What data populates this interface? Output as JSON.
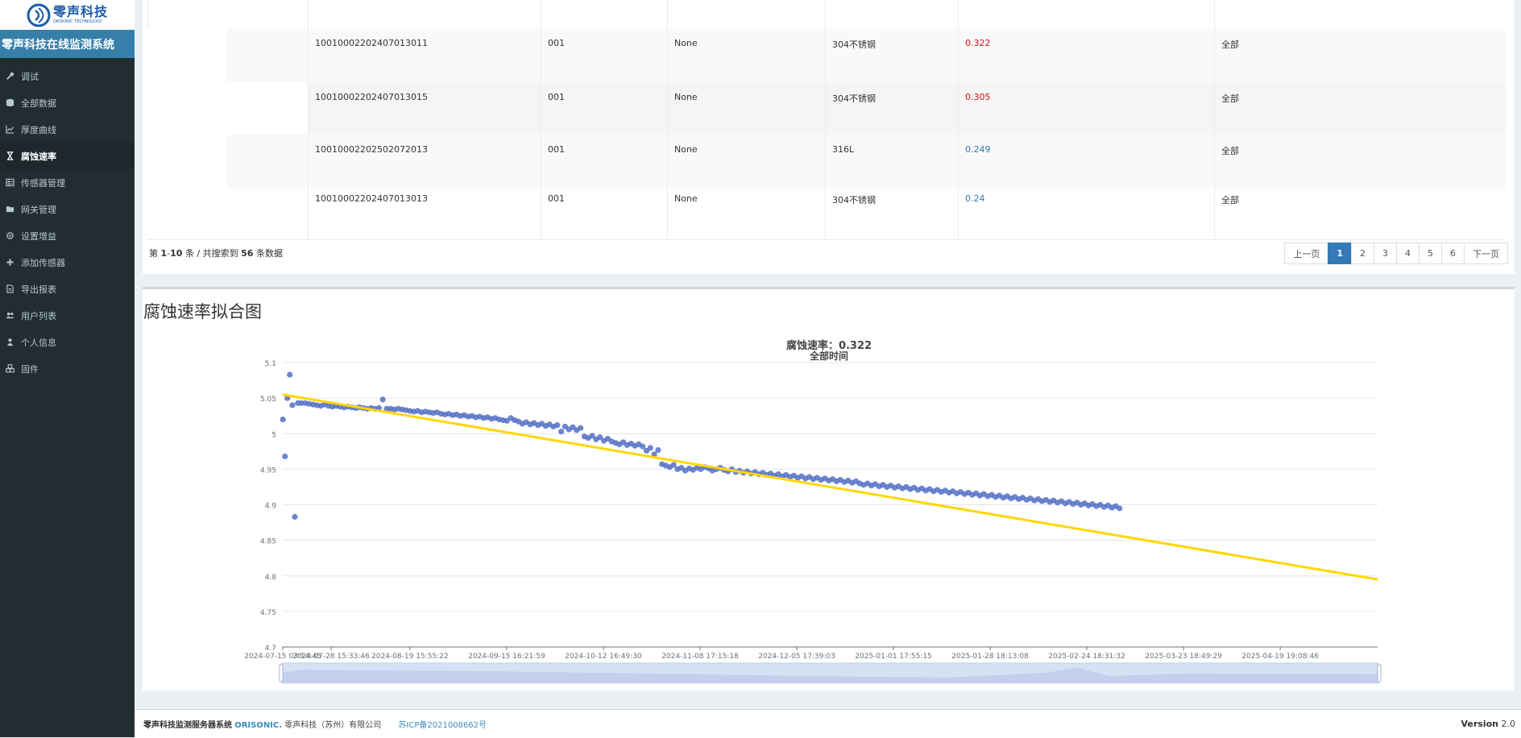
{
  "brand": {
    "logo_cn": "零声科技",
    "logo_en": "ORISONIC TECHNOLOGY",
    "system_title": "零声科技在线监测系统"
  },
  "sidebar": {
    "items": [
      {
        "label": "调试",
        "icon": "wrench-icon",
        "active": false
      },
      {
        "label": "全部数据",
        "icon": "database-icon",
        "active": false
      },
      {
        "label": "厚度曲线",
        "icon": "line-chart-icon",
        "active": false
      },
      {
        "label": "腐蚀速率",
        "icon": "hourglass-icon",
        "active": true
      },
      {
        "label": "传感器管理",
        "icon": "table-icon",
        "active": false
      },
      {
        "label": "网关管理",
        "icon": "folder-icon",
        "active": false
      },
      {
        "label": "设置增益",
        "icon": "gear-icon",
        "active": false
      },
      {
        "label": "添加传感器",
        "icon": "plus-icon",
        "active": false
      },
      {
        "label": "导出报表",
        "icon": "file-icon",
        "active": false
      },
      {
        "label": "用户列表",
        "icon": "users-icon",
        "active": false
      },
      {
        "label": "个人信息",
        "icon": "user-icon",
        "active": false
      },
      {
        "label": "固件",
        "icon": "cubes-icon",
        "active": false
      }
    ]
  },
  "table": {
    "rows": [
      {
        "sensor_id": "10010002202407013011",
        "code": "001",
        "name": "None",
        "material": "304不锈钢",
        "rate": "0.322",
        "rate_color": "#dd1111",
        "range": "全部"
      },
      {
        "sensor_id": "10010002202407013015",
        "code": "001",
        "name": "None",
        "material": "304不锈钢",
        "rate": "0.305",
        "rate_color": "#dd1111",
        "range": "全部"
      },
      {
        "sensor_id": "10010002202502072013",
        "code": "001",
        "name": "None",
        "material": "316L",
        "rate": "0.249",
        "rate_color": "#337ab7",
        "range": "全部"
      },
      {
        "sensor_id": "10010002202407013013",
        "code": "001",
        "name": "None",
        "material": "304不锈钢",
        "rate": "0.24",
        "rate_color": "#337ab7",
        "range": "全部"
      }
    ]
  },
  "pager": {
    "prefix": "第",
    "start": "1",
    "sep": "-",
    "end": "10",
    "mid": "条 / 共搜索到",
    "total": "56",
    "suffix": "条数据",
    "prev": "上一页",
    "next": "下一页",
    "pages": [
      "1",
      "2",
      "3",
      "4",
      "5",
      "6"
    ],
    "current": "1"
  },
  "chart_section": {
    "heading": "腐蚀速率拟合图"
  },
  "chart_data": {
    "type": "scatter",
    "title": "腐蚀速率：0.322",
    "subtitle": "全部时间",
    "ylim": [
      4.7,
      5.1
    ],
    "yticks": [
      4.7,
      4.75,
      4.8,
      4.85,
      4.9,
      4.95,
      5,
      5.05,
      5.1
    ],
    "ytick_labels": [
      "4.7",
      "4.75",
      "4.8",
      "4.85",
      "4.9",
      "4.95",
      "5",
      "5.05",
      "5.1"
    ],
    "xlim": [
      "2024-07-15 03:14:45",
      "2025-05-17 00:00:00"
    ],
    "xticks": [
      "2024-07-15 03:14:45",
      "2024-07-28 15:33:46",
      "2024-08-19 15:55:22",
      "2024-09-15 16:21:59",
      "2024-10-12 16:49:30",
      "2024-11-08 17:15:18",
      "2024-12-05 17:39:03",
      "2025-01-01 17:55:15",
      "2025-01-28 18:13:08",
      "2025-02-24 18:31:32",
      "2025-03-23 18:49:29",
      "2025-04-19 19:08:46"
    ],
    "grid": true,
    "scatter_color": "#5470c6",
    "fit_color": "#ffd700",
    "fit_line": {
      "x": [
        "2024-07-15 03:14:45",
        "2025-05-17 00:00:00"
      ],
      "y": [
        5.055,
        4.795
      ]
    },
    "points": [
      [
        "2024-07-15 04:00:00",
        5.02
      ],
      [
        "2024-07-15 18:00:00",
        4.968
      ],
      [
        "2024-07-16 10:00:00",
        5.05
      ],
      [
        "2024-07-17 02:00:00",
        5.083
      ],
      [
        "2024-07-17 20:00:00",
        5.04
      ],
      [
        "2024-07-18 12:00:00",
        4.883
      ],
      [
        "2024-07-19 09:00:00",
        5.043
      ],
      [
        "2024-07-20 08:00:00",
        5.043
      ],
      [
        "2024-07-21 10:00:00",
        5.043
      ],
      [
        "2024-07-22 12:00:00",
        5.042
      ],
      [
        "2024-07-23 14:00:00",
        5.041
      ],
      [
        "2024-07-24 16:00:00",
        5.04
      ],
      [
        "2024-07-25 18:00:00",
        5.039
      ],
      [
        "2024-07-26 20:00:00",
        5.041
      ],
      [
        "2024-07-27 22:00:00",
        5.039
      ],
      [
        "2024-07-29 00:00:00",
        5.038
      ],
      [
        "2024-07-30 02:00:00",
        5.039
      ],
      [
        "2024-07-31 04:00:00",
        5.038
      ],
      [
        "2024-08-01 06:00:00",
        5.037
      ],
      [
        "2024-08-02 08:00:00",
        5.038
      ],
      [
        "2024-08-03 10:00:00",
        5.037
      ],
      [
        "2024-08-04 12:00:00",
        5.036
      ],
      [
        "2024-08-05 14:00:00",
        5.037
      ],
      [
        "2024-08-06 16:00:00",
        5.036
      ],
      [
        "2024-08-07 18:00:00",
        5.035
      ],
      [
        "2024-08-08 20:00:00",
        5.036
      ],
      [
        "2024-08-09 22:00:00",
        5.035
      ],
      [
        "2024-08-11 00:00:00",
        5.036
      ],
      [
        "2024-08-12 02:00:00",
        5.048
      ],
      [
        "2024-08-13 04:00:00",
        5.035
      ],
      [
        "2024-08-14 06:00:00",
        5.035
      ],
      [
        "2024-08-15 08:00:00",
        5.034
      ],
      [
        "2024-08-16 10:00:00",
        5.035
      ],
      [
        "2024-08-17 12:00:00",
        5.034
      ],
      [
        "2024-08-18 14:00:00",
        5.033
      ],
      [
        "2024-08-19 16:00:00",
        5.032
      ],
      [
        "2024-08-20 18:00:00",
        5.031
      ],
      [
        "2024-08-21 20:00:00",
        5.032
      ],
      [
        "2024-08-22 22:00:00",
        5.03
      ],
      [
        "2024-08-24 00:00:00",
        5.031
      ],
      [
        "2024-08-25 02:00:00",
        5.03
      ],
      [
        "2024-08-26 04:00:00",
        5.029
      ],
      [
        "2024-08-27 06:00:00",
        5.03
      ],
      [
        "2024-08-28 08:00:00",
        5.028
      ],
      [
        "2024-08-29 10:00:00",
        5.027
      ],
      [
        "2024-08-30 12:00:00",
        5.028
      ],
      [
        "2024-08-31 14:00:00",
        5.026
      ],
      [
        "2024-09-01 16:00:00",
        5.027
      ],
      [
        "2024-09-02 18:00:00",
        5.025
      ],
      [
        "2024-09-03 20:00:00",
        5.026
      ],
      [
        "2024-09-04 22:00:00",
        5.024
      ],
      [
        "2024-09-06 00:00:00",
        5.025
      ],
      [
        "2024-09-07 02:00:00",
        5.023
      ],
      [
        "2024-09-08 04:00:00",
        5.024
      ],
      [
        "2024-09-09 06:00:00",
        5.022
      ],
      [
        "2024-09-10 08:00:00",
        5.023
      ],
      [
        "2024-09-11 10:00:00",
        5.021
      ],
      [
        "2024-09-12 12:00:00",
        5.022
      ],
      [
        "2024-09-13 14:00:00",
        5.02
      ],
      [
        "2024-09-14 16:00:00",
        5.019
      ],
      [
        "2024-09-15 18:00:00",
        5.018
      ],
      [
        "2024-09-16 20:00:00",
        5.022
      ],
      [
        "2024-09-17 22:00:00",
        5.019
      ],
      [
        "2024-09-19 00:00:00",
        5.017
      ],
      [
        "2024-09-20 02:00:00",
        5.014
      ],
      [
        "2024-09-21 04:00:00",
        5.016
      ],
      [
        "2024-09-22 06:00:00",
        5.013
      ],
      [
        "2024-09-23 08:00:00",
        5.015
      ],
      [
        "2024-09-24 10:00:00",
        5.012
      ],
      [
        "2024-09-25 12:00:00",
        5.014
      ],
      [
        "2024-09-26 14:00:00",
        5.011
      ],
      [
        "2024-09-27 16:00:00",
        5.013
      ],
      [
        "2024-09-28 18:00:00",
        5.01
      ],
      [
        "2024-09-29 20:00:00",
        5.012
      ],
      [
        "2024-09-30 22:00:00",
        5.003
      ],
      [
        "2024-10-02 00:00:00",
        5.01
      ],
      [
        "2024-10-03 02:00:00",
        5.006
      ],
      [
        "2024-10-04 04:00:00",
        5.009
      ],
      [
        "2024-10-05 06:00:00",
        5.005
      ],
      [
        "2024-10-06 08:00:00",
        5.008
      ],
      [
        "2024-10-07 10:00:00",
        4.996
      ],
      [
        "2024-10-08 12:00:00",
        4.994
      ],
      [
        "2024-10-09 14:00:00",
        4.997
      ],
      [
        "2024-10-10 16:00:00",
        4.992
      ],
      [
        "2024-10-11 18:00:00",
        4.995
      ],
      [
        "2024-10-12 20:00:00",
        4.99
      ],
      [
        "2024-10-13 22:00:00",
        4.993
      ],
      [
        "2024-10-15 00:00:00",
        4.989
      ],
      [
        "2024-10-16 02:00:00",
        4.987
      ],
      [
        "2024-10-17 04:00:00",
        4.985
      ],
      [
        "2024-10-18 06:00:00",
        4.988
      ],
      [
        "2024-10-19 08:00:00",
        4.984
      ],
      [
        "2024-10-20 10:00:00",
        4.986
      ],
      [
        "2024-10-21 12:00:00",
        4.983
      ],
      [
        "2024-10-22 14:00:00",
        4.985
      ],
      [
        "2024-10-23 16:00:00",
        4.982
      ],
      [
        "2024-10-24 18:00:00",
        4.976
      ],
      [
        "2024-10-25 20:00:00",
        4.98
      ],
      [
        "2024-10-26 22:00:00",
        4.971
      ],
      [
        "2024-10-28 00:00:00",
        4.977
      ],
      [
        "2024-10-29 02:00:00",
        4.957
      ],
      [
        "2024-10-30 04:00:00",
        4.955
      ],
      [
        "2024-10-31 06:00:00",
        4.953
      ],
      [
        "2024-11-01 08:00:00",
        4.956
      ],
      [
        "2024-11-02 10:00:00",
        4.95
      ],
      [
        "2024-11-03 12:00:00",
        4.952
      ],
      [
        "2024-11-04 14:00:00",
        4.948
      ],
      [
        "2024-11-05 16:00:00",
        4.951
      ],
      [
        "2024-11-06 18:00:00",
        4.949
      ],
      [
        "2024-11-07 20:00:00",
        4.952
      ],
      [
        "2024-11-08 22:00:00",
        4.95
      ],
      [
        "2024-11-10 00:00:00",
        4.953
      ],
      [
        "2024-11-11 02:00:00",
        4.951
      ],
      [
        "2024-11-12 04:00:00",
        4.948
      ],
      [
        "2024-11-13 06:00:00",
        4.95
      ],
      [
        "2024-11-14 08:00:00",
        4.952
      ],
      [
        "2024-11-15 10:00:00",
        4.949
      ],
      [
        "2024-11-16 12:00:00",
        4.947
      ],
      [
        "2024-11-17 14:00:00",
        4.95
      ],
      [
        "2024-11-18 16:00:00",
        4.946
      ],
      [
        "2024-11-19 18:00:00",
        4.948
      ],
      [
        "2024-11-20 20:00:00",
        4.945
      ],
      [
        "2024-11-21 22:00:00",
        4.947
      ],
      [
        "2024-11-23 00:00:00",
        4.944
      ],
      [
        "2024-11-24 02:00:00",
        4.946
      ],
      [
        "2024-11-25 04:00:00",
        4.943
      ],
      [
        "2024-11-26 06:00:00",
        4.945
      ],
      [
        "2024-11-27 08:00:00",
        4.942
      ],
      [
        "2024-11-28 10:00:00",
        4.944
      ],
      [
        "2024-11-29 12:00:00",
        4.941
      ],
      [
        "2024-11-30 14:00:00",
        4.943
      ],
      [
        "2024-12-01 16:00:00",
        4.94
      ],
      [
        "2024-12-02 18:00:00",
        4.942
      ],
      [
        "2024-12-03 20:00:00",
        4.939
      ],
      [
        "2024-12-04 22:00:00",
        4.941
      ],
      [
        "2024-12-06 00:00:00",
        4.938
      ],
      [
        "2024-12-07 02:00:00",
        4.94
      ],
      [
        "2024-12-08 04:00:00",
        4.937
      ],
      [
        "2024-12-09 06:00:00",
        4.939
      ],
      [
        "2024-12-10 08:00:00",
        4.936
      ],
      [
        "2024-12-11 10:00:00",
        4.938
      ],
      [
        "2024-12-12 12:00:00",
        4.935
      ],
      [
        "2024-12-13 14:00:00",
        4.937
      ],
      [
        "2024-12-14 16:00:00",
        4.934
      ],
      [
        "2024-12-15 18:00:00",
        4.936
      ],
      [
        "2024-12-16 20:00:00",
        4.933
      ],
      [
        "2024-12-17 22:00:00",
        4.935
      ],
      [
        "2024-12-19 00:00:00",
        4.932
      ],
      [
        "2024-12-20 02:00:00",
        4.934
      ],
      [
        "2024-12-21 04:00:00",
        4.931
      ],
      [
        "2024-12-22 06:00:00",
        4.933
      ],
      [
        "2024-12-23 08:00:00",
        4.93
      ],
      [
        "2024-12-24 10:00:00",
        4.928
      ],
      [
        "2024-12-25 12:00:00",
        4.93
      ],
      [
        "2024-12-26 14:00:00",
        4.927
      ],
      [
        "2024-12-27 16:00:00",
        4.929
      ],
      [
        "2024-12-28 18:00:00",
        4.926
      ],
      [
        "2024-12-29 20:00:00",
        4.928
      ],
      [
        "2024-12-30 22:00:00",
        4.925
      ],
      [
        "2025-01-01 00:00:00",
        4.927
      ],
      [
        "2025-01-02 02:00:00",
        4.924
      ],
      [
        "2025-01-03 04:00:00",
        4.926
      ],
      [
        "2025-01-04 06:00:00",
        4.923
      ],
      [
        "2025-01-05 08:00:00",
        4.925
      ],
      [
        "2025-01-06 10:00:00",
        4.922
      ],
      [
        "2025-01-07 12:00:00",
        4.924
      ],
      [
        "2025-01-08 14:00:00",
        4.921
      ],
      [
        "2025-01-09 16:00:00",
        4.923
      ],
      [
        "2025-01-10 18:00:00",
        4.92
      ],
      [
        "2025-01-11 20:00:00",
        4.922
      ],
      [
        "2025-01-12 22:00:00",
        4.919
      ],
      [
        "2025-01-14 00:00:00",
        4.921
      ],
      [
        "2025-01-15 02:00:00",
        4.918
      ],
      [
        "2025-01-16 04:00:00",
        4.92
      ],
      [
        "2025-01-17 06:00:00",
        4.917
      ],
      [
        "2025-01-18 08:00:00",
        4.919
      ],
      [
        "2025-01-19 10:00:00",
        4.916
      ],
      [
        "2025-01-20 12:00:00",
        4.918
      ],
      [
        "2025-01-21 14:00:00",
        4.915
      ],
      [
        "2025-01-22 16:00:00",
        4.917
      ],
      [
        "2025-01-23 18:00:00",
        4.914
      ],
      [
        "2025-01-24 20:00:00",
        4.916
      ],
      [
        "2025-01-25 22:00:00",
        4.913
      ],
      [
        "2025-01-27 00:00:00",
        4.915
      ],
      [
        "2025-01-28 02:00:00",
        4.912
      ],
      [
        "2025-01-29 04:00:00",
        4.914
      ],
      [
        "2025-01-30 06:00:00",
        4.911
      ],
      [
        "2025-01-31 08:00:00",
        4.913
      ],
      [
        "2025-02-01 10:00:00",
        4.91
      ],
      [
        "2025-02-02 12:00:00",
        4.912
      ],
      [
        "2025-02-03 14:00:00",
        4.909
      ],
      [
        "2025-02-04 16:00:00",
        4.911
      ],
      [
        "2025-02-05 18:00:00",
        4.908
      ],
      [
        "2025-02-06 20:00:00",
        4.91
      ],
      [
        "2025-02-07 22:00:00",
        4.907
      ],
      [
        "2025-02-09 00:00:00",
        4.909
      ],
      [
        "2025-02-10 02:00:00",
        4.906
      ],
      [
        "2025-02-11 04:00:00",
        4.908
      ],
      [
        "2025-02-12 06:00:00",
        4.905
      ],
      [
        "2025-02-13 08:00:00",
        4.907
      ],
      [
        "2025-02-14 10:00:00",
        4.904
      ],
      [
        "2025-02-15 12:00:00",
        4.906
      ],
      [
        "2025-02-16 14:00:00",
        4.903
      ],
      [
        "2025-02-17 16:00:00",
        4.905
      ],
      [
        "2025-02-18 18:00:00",
        4.902
      ],
      [
        "2025-02-19 20:00:00",
        4.904
      ],
      [
        "2025-02-20 22:00:00",
        4.901
      ],
      [
        "2025-02-22 00:00:00",
        4.903
      ],
      [
        "2025-02-23 02:00:00",
        4.9
      ],
      [
        "2025-02-24 04:00:00",
        4.902
      ],
      [
        "2025-02-25 06:00:00",
        4.899
      ],
      [
        "2025-02-26 08:00:00",
        4.901
      ],
      [
        "2025-02-27 10:00:00",
        4.898
      ],
      [
        "2025-02-28 12:00:00",
        4.9
      ],
      [
        "2025-03-01 14:00:00",
        4.897
      ],
      [
        "2025-03-02 16:00:00",
        4.899
      ],
      [
        "2025-03-03 18:00:00",
        4.896
      ],
      [
        "2025-03-04 20:00:00",
        4.898
      ],
      [
        "2025-03-05 22:00:00",
        4.895
      ]
    ]
  },
  "footer": {
    "system": "零声科技监测服务器系统",
    "brand": "ORISONIC.",
    "company": "零声科技（苏州）有限公司",
    "icp": "苏ICP备2021008662号",
    "version_label": "Version",
    "version": "2.0"
  }
}
